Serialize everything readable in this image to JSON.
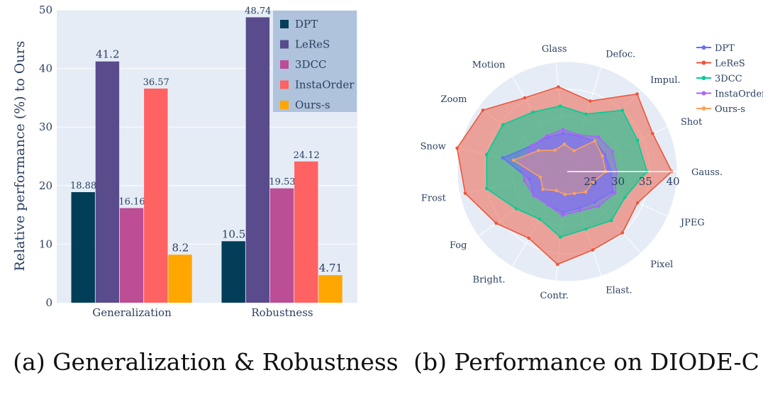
{
  "captions": {
    "a": "(a) Generalization & Robustness",
    "b": "(b) Performance on DIODE-C"
  },
  "chart_data": [
    {
      "type": "bar",
      "title": "",
      "ylabel": "Relative performance (%) to Ours",
      "xlabel": "",
      "categories": [
        "Generalization",
        "Robustness"
      ],
      "ylim": [
        0,
        50
      ],
      "yticks": [
        "0",
        "10",
        "20",
        "30",
        "40",
        "50"
      ],
      "grid": true,
      "legend_position": "top-right",
      "series": [
        {
          "name": "DPT",
          "color": "#023e58",
          "values": [
            18.88,
            10.5
          ],
          "labels": [
            "18.88",
            "10.5"
          ]
        },
        {
          "name": "LeReS",
          "color": "#594b8c",
          "values": [
            41.2,
            48.74
          ],
          "labels": [
            "41.2",
            "48.74"
          ]
        },
        {
          "name": "3DCC",
          "color": "#bb4e95",
          "values": [
            16.16,
            19.53
          ],
          "labels": [
            "16.16",
            "19.53"
          ]
        },
        {
          "name": "InstaOrder",
          "color": "#ff6262",
          "values": [
            36.57,
            24.12
          ],
          "labels": [
            "36.57",
            "24.12"
          ]
        },
        {
          "name": "Ours-s",
          "color": "#ffa600",
          "values": [
            8.2,
            4.71
          ],
          "labels": [
            "8.2",
            "4.71"
          ]
        }
      ]
    },
    {
      "type": "radar",
      "title": "",
      "categories": [
        "Gauss.",
        "Shot",
        "Impul.",
        "Defoc.",
        "Glass",
        "Motion",
        "Zoom",
        "Snow",
        "Frost",
        "Fog",
        "Bright.",
        "Contr.",
        "Elast.",
        "Pixel",
        "JPEG"
      ],
      "rrange": [
        20,
        40
      ],
      "rticks": [
        "25",
        "30",
        "35",
        "40"
      ],
      "legend_position": "top-right",
      "series": [
        {
          "name": "DPT",
          "color": "#636efa",
          "values": [
            28,
            27.5,
            27.5,
            26.8,
            27,
            27.2,
            28,
            32,
            27,
            27.5,
            27,
            27.5,
            27,
            27.5,
            29
          ]
        },
        {
          "name": "LeReS",
          "color": "#ef553b",
          "values": [
            39,
            37,
            39,
            33.5,
            35.5,
            35.5,
            39,
            40.5,
            39,
            36,
            34,
            37,
            35,
            35,
            34
          ]
        },
        {
          "name": "3DCC",
          "color": "#00cc96",
          "values": [
            34.5,
            34,
            35,
            31,
            32,
            32.5,
            34.5,
            35,
            35,
            31.5,
            30,
            32,
            31,
            32,
            31.5
          ]
        },
        {
          "name": "InstaOrder",
          "color": "#ab63fa",
          "values": [
            29,
            29,
            28.5,
            27,
            27.7,
            27.5,
            28,
            28.5,
            28,
            27.5,
            27,
            28,
            27.5,
            28.5,
            29.5
          ]
        },
        {
          "name": "Ours-s",
          "color": "#ffa15a",
          "values": [
            27,
            27,
            27.5,
            24,
            25,
            24.5,
            26.5,
            30,
            25,
            25.5,
            24,
            24.2,
            24.2,
            25,
            25
          ]
        }
      ]
    }
  ]
}
